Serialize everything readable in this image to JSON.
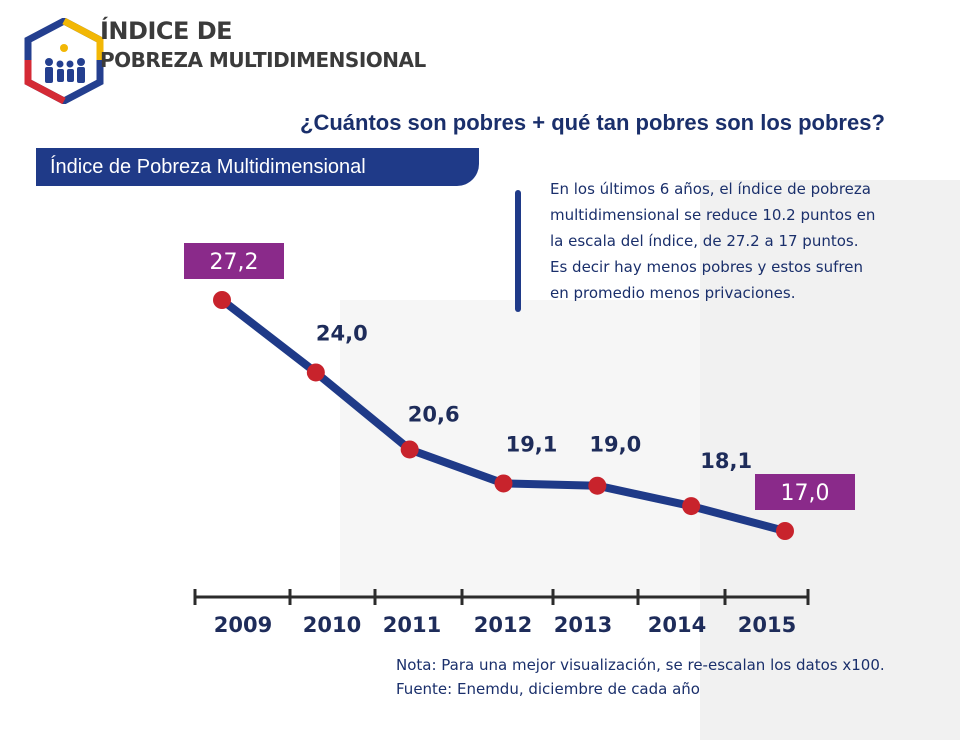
{
  "logo": {
    "line1": "ÍNDICE DE",
    "line2": "POBREZA MULTIDIMENSIONAL"
  },
  "headline": "¿Cuántos son pobres + qué tan pobres son los pobres?",
  "section_title": "Índice de Pobreza Multidimensional",
  "description": "En los últimos 6 años, el índice de pobreza multidimensional se reduce 10.2 puntos en la escala del índice, de 27.2 a 17 puntos. Es decir hay menos pobres y estos sufren en promedio menos privaciones.",
  "note": "Nota: Para una mejor visualización, se re-escalan los datos x100.",
  "source": "Fuente: Enemdu, diciembre de cada año",
  "colors": {
    "navy": "#1f3a88",
    "line": "#1f3a88",
    "marker": "#c8232c",
    "highlight": "#8a2a8a",
    "axis_text": "#1e2c5a",
    "logo_red": "#d42a35",
    "logo_yellow": "#f2b705",
    "logo_blue": "#243f8f"
  },
  "chart_data": {
    "type": "line",
    "title": "Índice de Pobreza Multidimensional",
    "categories": [
      "2009",
      "2010",
      "2011",
      "2012",
      "2013",
      "2014",
      "2015"
    ],
    "values": [
      27.2,
      24.0,
      20.6,
      19.1,
      19.0,
      18.1,
      17.0
    ],
    "labels": [
      "27,2",
      "24,0",
      "20,6",
      "19,1",
      "19,0",
      "18,1",
      "17,0"
    ],
    "highlighted_labels": [
      0,
      6
    ],
    "ylim": [
      17.0,
      27.2
    ],
    "xlabel": "",
    "ylabel": "",
    "grid": false
  }
}
